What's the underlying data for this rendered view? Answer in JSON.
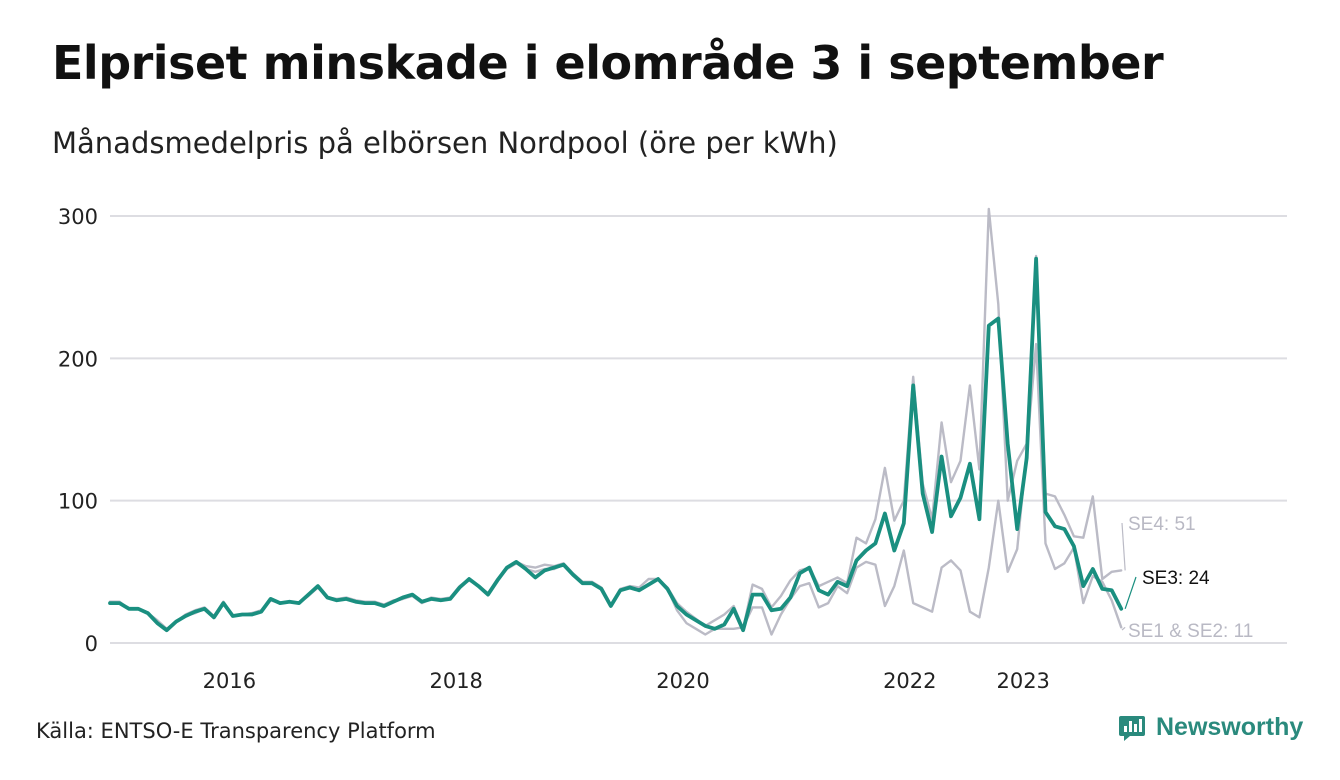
{
  "header": {
    "title": "Elpriset minskade i elområde 3 i september",
    "subtitle": "Månadsmedelpris på elbörsen Nordpool (öre per kWh)"
  },
  "footer": {
    "source": "Källa: ENTSO-E Transparency Platform",
    "brand": "Newsworthy"
  },
  "colors": {
    "se3": "#1a8f80",
    "others": "#bbbbc6",
    "grid": "#dddde2",
    "label_se3": "#111111",
    "label_others": "#b9b9c4"
  },
  "chart_data": {
    "type": "line",
    "title": "Elpriset minskade i elområde 3 i september",
    "subtitle": "Månadsmedelpris på elbörsen Nordpool (öre per kWh)",
    "xlabel": "",
    "ylabel": "öre per kWh",
    "ylim": [
      0,
      300
    ],
    "y_ticks": [
      0,
      100,
      200,
      300
    ],
    "x_ticks": [
      {
        "label": "2016",
        "x": 2016
      },
      {
        "label": "2018",
        "x": 2018
      },
      {
        "label": "2020",
        "x": 2020
      },
      {
        "label": "2022",
        "x": 2022
      },
      {
        "label": "2023",
        "x": 2023
      }
    ],
    "x_start": "2015-01",
    "x_end": "2023-09",
    "series": [
      {
        "name": "SE4",
        "end_label": "SE4: 51",
        "values": [
          29,
          29,
          24,
          24,
          21,
          15,
          9,
          15,
          20,
          23,
          25,
          19,
          29,
          19,
          20,
          21,
          23,
          31,
          28,
          29,
          28,
          34,
          39,
          32,
          31,
          32,
          30,
          29,
          29,
          27,
          30,
          31,
          34,
          29,
          32,
          31,
          32,
          40,
          45,
          40,
          35,
          45,
          53,
          57,
          54,
          53,
          55,
          54,
          56,
          49,
          43,
          43,
          39,
          27,
          38,
          40,
          39,
          45,
          45,
          39,
          28,
          22,
          17,
          12,
          16,
          20,
          26,
          10,
          41,
          38,
          25,
          33,
          44,
          51,
          53,
          40,
          43,
          46,
          42,
          74,
          70,
          87,
          123,
          86,
          100,
          187,
          112,
          87,
          155,
          113,
          128,
          181,
          122,
          305,
          238,
          100,
          128,
          140,
          272,
          105,
          103,
          90,
          75,
          74,
          103,
          45,
          50,
          51
        ]
      },
      {
        "name": "SE3",
        "end_label": "SE3: 24",
        "values": [
          28,
          28,
          24,
          24,
          21,
          14,
          9,
          15,
          19,
          22,
          24,
          18,
          28,
          19,
          20,
          20,
          22,
          31,
          28,
          29,
          28,
          34,
          40,
          32,
          30,
          31,
          29,
          28,
          28,
          26,
          29,
          32,
          34,
          29,
          31,
          30,
          31,
          39,
          45,
          40,
          34,
          44,
          53,
          57,
          52,
          46,
          51,
          53,
          55,
          48,
          42,
          42,
          38,
          26,
          37,
          39,
          37,
          41,
          45,
          38,
          26,
          20,
          16,
          12,
          10,
          13,
          24,
          9,
          34,
          34,
          23,
          24,
          32,
          49,
          53,
          37,
          34,
          43,
          40,
          58,
          65,
          70,
          91,
          65,
          84,
          181,
          105,
          78,
          131,
          89,
          102,
          126,
          87,
          223,
          228,
          140,
          80,
          130,
          270,
          92,
          82,
          80,
          68,
          40,
          52,
          38,
          37,
          24
        ]
      },
      {
        "name": "SE1 & SE2",
        "end_label": "SE1 & SE2: 11",
        "values": [
          28,
          28,
          24,
          24,
          21,
          16,
          10,
          15,
          19,
          21,
          24,
          18,
          28,
          19,
          20,
          20,
          22,
          30,
          28,
          29,
          28,
          33,
          39,
          32,
          30,
          31,
          29,
          28,
          28,
          26,
          29,
          31,
          33,
          28,
          31,
          30,
          31,
          39,
          44,
          40,
          34,
          44,
          52,
          56,
          52,
          50,
          52,
          52,
          55,
          48,
          42,
          42,
          38,
          26,
          37,
          39,
          37,
          41,
          45,
          38,
          23,
          14,
          10,
          6,
          10,
          10,
          10,
          11,
          25,
          25,
          6,
          20,
          31,
          40,
          42,
          25,
          28,
          40,
          35,
          53,
          57,
          55,
          26,
          40,
          65,
          28,
          25,
          22,
          53,
          58,
          51,
          22,
          18,
          53,
          100,
          50,
          66,
          135,
          210,
          70,
          52,
          56,
          67,
          28,
          47,
          43,
          30,
          11
        ]
      }
    ]
  }
}
